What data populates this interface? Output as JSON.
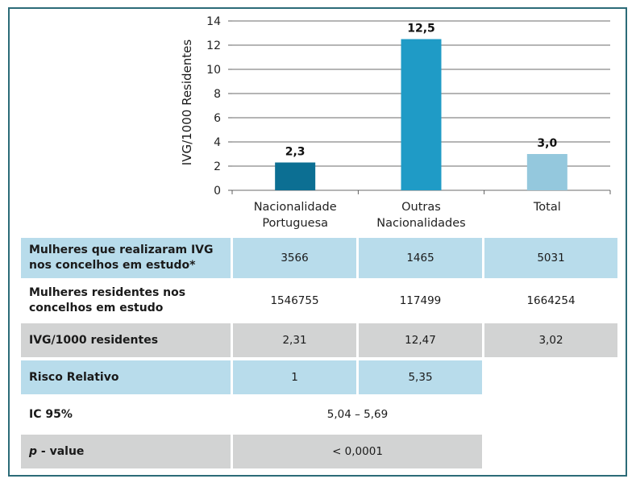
{
  "chart_data": {
    "type": "bar",
    "categories": [
      "Nacionalidade Portuguesa",
      "Outras Nacionalidades",
      "Total"
    ],
    "category_lines": [
      [
        "Nacionalidade",
        "Portuguesa"
      ],
      [
        "Outras",
        "Nacionalidades"
      ],
      [
        "Total"
      ]
    ],
    "values": [
      2.3,
      12.5,
      3.0
    ],
    "value_labels": [
      "2,3",
      "12,5",
      "3,0"
    ],
    "colors": [
      "#0c6f93",
      "#1f9bc6",
      "#94c8dd"
    ],
    "ylabel": "IVG/1000 Residentes",
    "xlabel": "",
    "ylim": [
      0,
      14
    ],
    "yticks": [
      0,
      2,
      4,
      6,
      8,
      10,
      12,
      14
    ],
    "grid": true
  },
  "table": {
    "rows": [
      {
        "label_lines": [
          "Mulheres que realizaram IVG",
          "nos concelhos em estudo*"
        ],
        "cells": [
          "3566",
          "1465",
          "5031"
        ]
      },
      {
        "label_lines": [
          "Mulheres residentes nos",
          "concelhos em estudo"
        ],
        "cells": [
          "1546755",
          "117499",
          "1664254"
        ]
      },
      {
        "label_lines": [
          "IVG/1000 residentes"
        ],
        "cells": [
          "2,31",
          "12,47",
          "3,02"
        ]
      },
      {
        "label_lines": [
          "Risco Relativo"
        ],
        "cells": [
          "1",
          "5,35"
        ]
      },
      {
        "label_lines": [
          "IC 95%"
        ],
        "cells": [
          "5,04 – 5,69"
        ]
      },
      {
        "label_p": "p",
        "label_rest": " - value",
        "cells": [
          "< 0,0001"
        ]
      }
    ]
  }
}
